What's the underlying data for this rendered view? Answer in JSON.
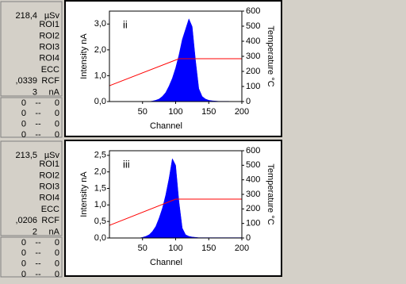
{
  "panels": [
    {
      "readings": [
        {
          "value": "218,4",
          "unit": "µSv"
        },
        {
          "unit": "ROI1"
        },
        {
          "unit": "ROI2"
        },
        {
          "unit": "ROI3"
        },
        {
          "unit": "ROI4"
        },
        {
          "unit": "ECC"
        },
        {
          "value": ",0339",
          "unit": "RCF"
        },
        {
          "value": "3",
          "unit": "nA"
        }
      ],
      "counts": [
        [
          "0",
          "--",
          "0"
        ],
        [
          "0",
          "--",
          "0"
        ],
        [
          "0",
          "--",
          "0"
        ],
        [
          "0",
          "--",
          "0"
        ]
      ]
    },
    {
      "readings": [
        {
          "value": "213,5",
          "unit": "µSv"
        },
        {
          "unit": "ROI1"
        },
        {
          "unit": "ROI2"
        },
        {
          "unit": "ROI3"
        },
        {
          "unit": "ROI4"
        },
        {
          "unit": "ECC"
        },
        {
          "value": ",0206",
          "unit": "RCF"
        },
        {
          "value": "2",
          "unit": "nA"
        }
      ],
      "counts": [
        [
          "0",
          "--",
          "0"
        ],
        [
          "0",
          "--",
          "0"
        ],
        [
          "0",
          "--",
          "0"
        ],
        [
          "0",
          "--",
          "0"
        ]
      ]
    }
  ],
  "chart_data": [
    {
      "type": "line",
      "annotation": "ii",
      "x_label": "Channel",
      "y_label": "Intensity nA",
      "y2_label": "Temperature °C",
      "xlim": [
        0,
        200
      ],
      "xticks": [
        50,
        100,
        150,
        200
      ],
      "ylim": [
        0,
        3.5
      ],
      "yticks": [
        {
          "value": 0,
          "label": "0,0"
        },
        {
          "value": 1,
          "label": "1,0"
        },
        {
          "value": 2,
          "label": "2,0"
        },
        {
          "value": 3,
          "label": "3,0"
        }
      ],
      "y2lim": [
        0,
        600
      ],
      "y2ticks": [
        0,
        100,
        200,
        300,
        400,
        500,
        600
      ],
      "x": [
        0,
        5,
        10,
        15,
        20,
        25,
        30,
        35,
        40,
        45,
        50,
        55,
        60,
        65,
        70,
        75,
        80,
        85,
        90,
        95,
        100,
        105,
        110,
        115,
        120,
        125,
        130,
        135,
        140,
        145,
        150,
        155,
        160,
        165,
        170,
        175,
        180,
        185,
        190,
        195,
        200
      ],
      "series": [
        {
          "color": "#0000ff",
          "fill": true,
          "values": [
            0,
            0,
            0,
            0,
            0,
            0,
            0,
            0,
            0,
            0,
            0,
            0,
            0,
            0.02,
            0.05,
            0.1,
            0.2,
            0.35,
            0.6,
            0.9,
            1.3,
            1.8,
            2.4,
            2.8,
            3.2,
            2.9,
            1.6,
            0.5,
            0.2,
            0.1,
            0.05,
            0.03,
            0.02,
            0.01,
            0.01,
            0.01,
            0.01,
            0,
            0,
            0,
            0
          ]
        },
        {
          "color": "#ff0000",
          "axis": "y2",
          "x": [
            0,
            105,
            200
          ],
          "values": [
            105,
            284,
            284
          ]
        }
      ]
    },
    {
      "type": "line",
      "annotation": "iii",
      "x_label": "Channel",
      "y_label": "Intensity nA",
      "y2_label": "Temperature °C",
      "xlim": [
        0,
        200
      ],
      "xticks": [
        50,
        100,
        150,
        200
      ],
      "ylim": [
        0,
        2.64
      ],
      "yticks": [
        {
          "value": 0,
          "label": "0,0"
        },
        {
          "value": 0.5,
          "label": "0,5"
        },
        {
          "value": 1,
          "label": "1,0"
        },
        {
          "value": 1.5,
          "label": "1,5"
        },
        {
          "value": 2,
          "label": "2,0"
        },
        {
          "value": 2.5,
          "label": "2,5"
        }
      ],
      "y2lim": [
        0,
        600
      ],
      "y2ticks": [
        0,
        100,
        200,
        300,
        400,
        500,
        600
      ],
      "x": [
        0,
        5,
        10,
        15,
        20,
        25,
        30,
        35,
        40,
        45,
        50,
        55,
        60,
        65,
        70,
        75,
        80,
        85,
        90,
        95,
        100,
        105,
        110,
        115,
        120,
        125,
        130,
        135,
        140,
        145,
        150,
        155,
        160,
        165,
        170,
        175,
        180,
        185,
        190,
        195,
        200
      ],
      "series": [
        {
          "color": "#0000ff",
          "fill": true,
          "values": [
            0,
            0,
            0,
            0,
            0,
            0,
            0,
            0,
            0,
            0,
            0.02,
            0.05,
            0.1,
            0.2,
            0.35,
            0.6,
            0.9,
            1.3,
            1.8,
            2.4,
            2.2,
            1.1,
            0.3,
            0.1,
            0.05,
            0.03,
            0.02,
            0.01,
            0.01,
            0.01,
            0.01,
            0.01,
            0.01,
            0.01,
            0.01,
            0.01,
            0.01,
            0.01,
            0.01,
            0.01,
            0.01
          ]
        },
        {
          "color": "#ff0000",
          "axis": "y2",
          "x": [
            0,
            100,
            200
          ],
          "values": [
            87,
            267,
            267
          ]
        }
      ]
    }
  ]
}
